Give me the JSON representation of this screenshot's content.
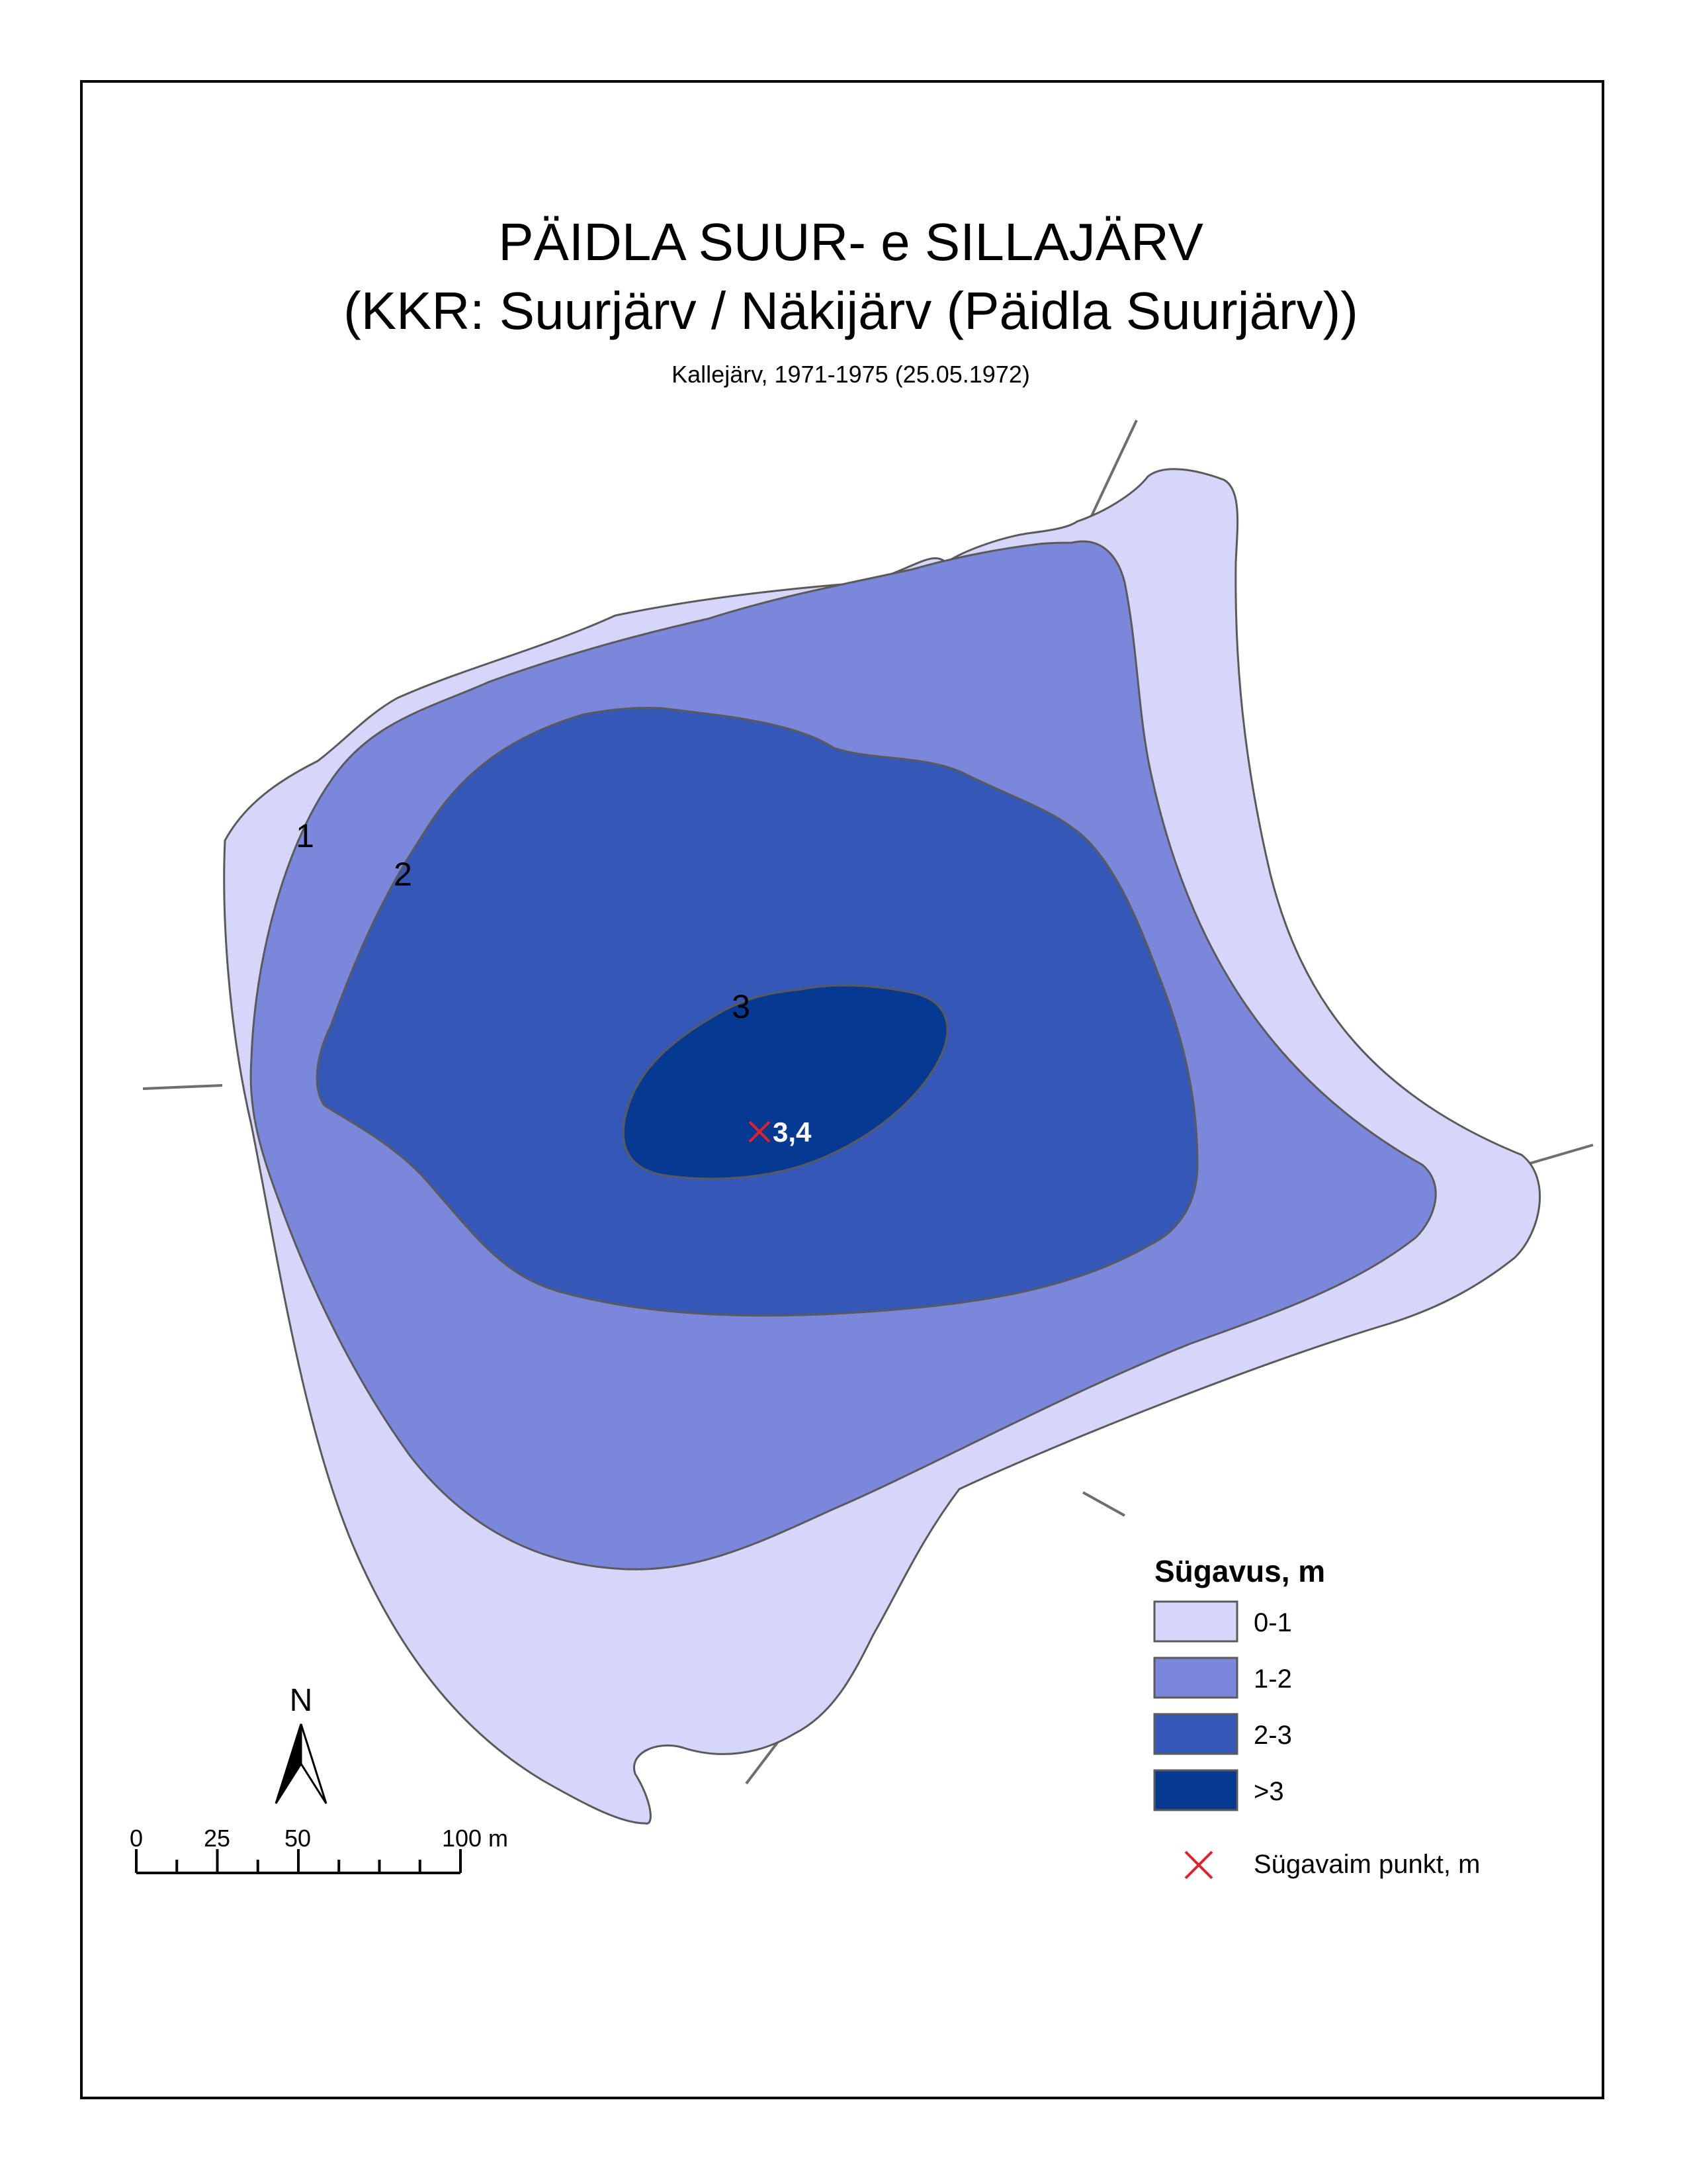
{
  "title": {
    "line1": "PÄIDLA SUUR- e SILLAJÄRV",
    "line2": "(KKR: Suurjärv / Näkijärv (Päidla Suurjärv))",
    "subtitle": "Kallejärv, 1971-1975 (25.05.1972)"
  },
  "contour_labels": {
    "c1": "1",
    "c2": "2",
    "c3": "3"
  },
  "deepest_point": {
    "value": "3,4",
    "depth_m": 3.4
  },
  "legend": {
    "title": "Sügavus, m",
    "classes": [
      {
        "label": "0-1",
        "color": "#d6d6fa"
      },
      {
        "label": "1-2",
        "color": "#7b87db"
      },
      {
        "label": "2-3",
        "color": "#3558b8"
      },
      {
        "label": ">3",
        "color": "#063a92"
      }
    ],
    "marker_label": "Sügavaim punkt, m",
    "marker_color": "#e0202a"
  },
  "north_arrow": {
    "label": "N"
  },
  "scale_bar": {
    "labels": [
      "0",
      "25",
      "50",
      "100 m"
    ],
    "values_m": [
      0,
      25,
      50,
      100
    ]
  },
  "colors": {
    "outline": "#5a5a5a",
    "frame": "#000000"
  }
}
